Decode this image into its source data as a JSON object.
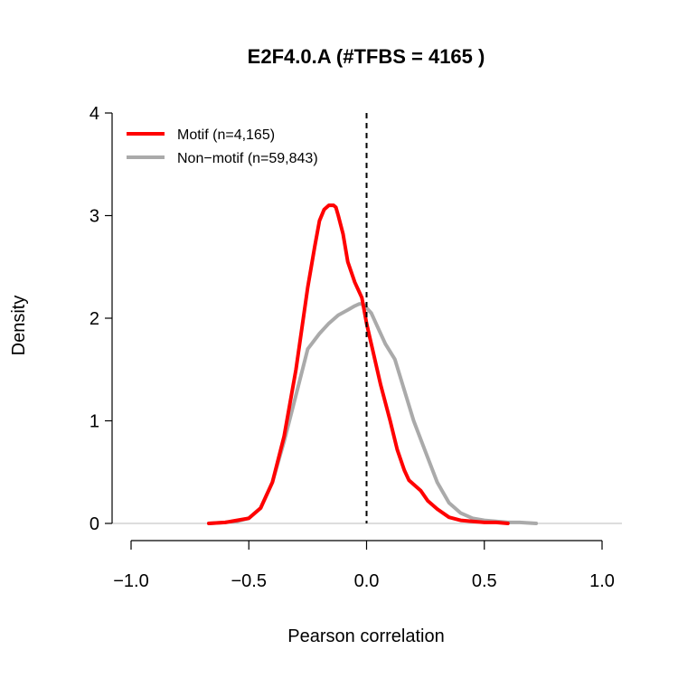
{
  "chart_data": {
    "type": "line",
    "title": "E2F4.0.A (#TFBS = 4165 )",
    "xlabel": "Pearson correlation",
    "ylabel": "Density",
    "xlim": [
      -1.0,
      1.0
    ],
    "ylim": [
      0,
      4
    ],
    "x_ticks": [
      "−1.0",
      "−0.5",
      "0.0",
      "0.5",
      "1.0"
    ],
    "x_tick_values": [
      -1.0,
      -0.5,
      0.0,
      0.5,
      1.0
    ],
    "y_ticks": [
      "0",
      "1",
      "2",
      "3",
      "4"
    ],
    "y_tick_values": [
      0,
      1,
      2,
      3,
      4
    ],
    "reference_line": {
      "x": 0.0,
      "style": "dashed",
      "color": "#000000"
    },
    "baseline": {
      "y": 0,
      "color": "#bbbbbb"
    },
    "grid": false,
    "legend_position": "top-left",
    "series": [
      {
        "name": "Motif (n=4,165)",
        "color": "#ff0000",
        "x": [
          -0.67,
          -0.6,
          -0.55,
          -0.5,
          -0.45,
          -0.4,
          -0.35,
          -0.3,
          -0.25,
          -0.22,
          -0.2,
          -0.18,
          -0.16,
          -0.14,
          -0.13,
          -0.12,
          -0.1,
          -0.08,
          -0.05,
          -0.02,
          0.0,
          0.03,
          0.06,
          0.1,
          0.13,
          0.16,
          0.18,
          0.2,
          0.23,
          0.26,
          0.3,
          0.35,
          0.4,
          0.45,
          0.5,
          0.55,
          0.6
        ],
        "values": [
          0.0,
          0.01,
          0.03,
          0.05,
          0.15,
          0.4,
          0.85,
          1.5,
          2.3,
          2.7,
          2.95,
          3.06,
          3.1,
          3.1,
          3.08,
          3.0,
          2.82,
          2.55,
          2.35,
          2.2,
          1.95,
          1.65,
          1.35,
          1.0,
          0.72,
          0.52,
          0.42,
          0.38,
          0.32,
          0.22,
          0.14,
          0.06,
          0.03,
          0.02,
          0.01,
          0.01,
          0.0
        ]
      },
      {
        "name": "Non−motif (n=59,843)",
        "color": "#aaaaaa",
        "x": [
          -0.67,
          -0.6,
          -0.55,
          -0.5,
          -0.45,
          -0.4,
          -0.35,
          -0.3,
          -0.25,
          -0.2,
          -0.16,
          -0.12,
          -0.08,
          -0.05,
          -0.03,
          -0.01,
          0.0,
          0.02,
          0.05,
          0.08,
          0.12,
          0.16,
          0.2,
          0.25,
          0.3,
          0.35,
          0.4,
          0.45,
          0.5,
          0.55,
          0.6,
          0.65,
          0.72
        ],
        "values": [
          0.0,
          0.01,
          0.02,
          0.05,
          0.15,
          0.4,
          0.8,
          1.25,
          1.7,
          1.85,
          1.95,
          2.03,
          2.08,
          2.12,
          2.14,
          2.13,
          2.1,
          2.05,
          1.9,
          1.75,
          1.6,
          1.3,
          1.0,
          0.7,
          0.4,
          0.2,
          0.1,
          0.05,
          0.03,
          0.02,
          0.01,
          0.01,
          0.0
        ]
      }
    ]
  }
}
